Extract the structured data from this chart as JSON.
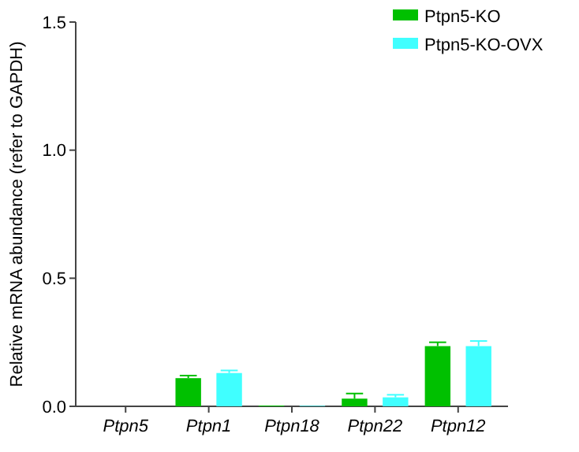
{
  "chart_data": {
    "type": "bar",
    "ylabel": "Relative mRNA abundance (refer to GAPDH)",
    "categories": [
      "Ptpn5",
      "Ptpn1",
      "Ptpn18",
      "Ptpn22",
      "Ptpn12"
    ],
    "series": [
      {
        "name": "Ptpn5-KO",
        "color": "#00c000",
        "values": [
          0,
          0.11,
          0.003,
          0.03,
          0.235
        ],
        "errors": [
          null,
          0.01,
          null,
          0.02,
          0.015
        ]
      },
      {
        "name": "Ptpn5-KO-OVX",
        "color": "#40ffff",
        "values": [
          0,
          0.13,
          0.002,
          0.035,
          0.235
        ],
        "errors": [
          null,
          0.01,
          null,
          0.01,
          0.02
        ]
      }
    ],
    "ylim": [
      0,
      1.5
    ],
    "yticks": [
      {
        "value": 0,
        "label": "0.0"
      },
      {
        "value": 0.5,
        "label": "0.5"
      },
      {
        "value": 1,
        "label": "1.0"
      },
      {
        "value": 1.5,
        "label": "1.5"
      }
    ],
    "legend": "top right",
    "grid": false
  }
}
